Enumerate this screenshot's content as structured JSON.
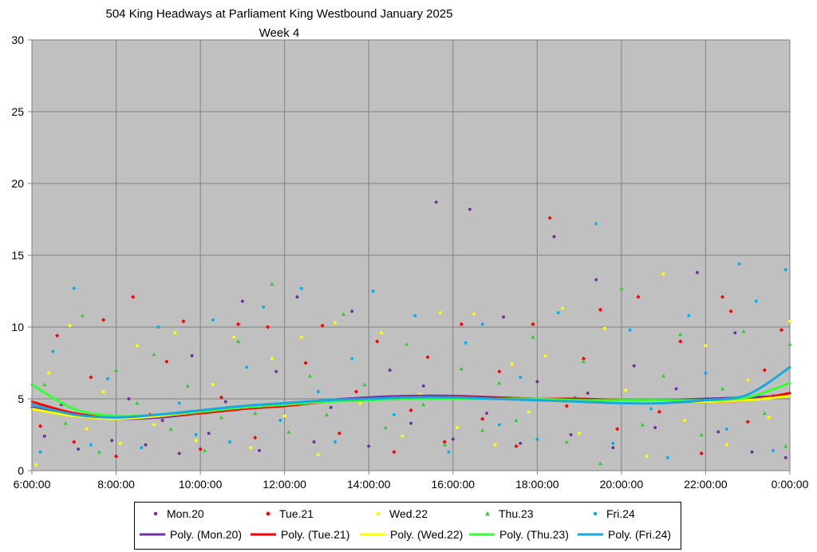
{
  "chart_data": {
    "type": "scatter",
    "title": "504 King Headways at Parliament King Westbound January 2025",
    "subtitle": "Week 4",
    "xlabel": "",
    "ylabel": "",
    "xlim": [
      "6:00:00",
      "0:00:00"
    ],
    "ylim": [
      0,
      30
    ],
    "y_ticks": [
      "0",
      "5",
      "10",
      "15",
      "20",
      "25",
      "30"
    ],
    "x_ticks": [
      "6:00:00",
      "8:00:00",
      "10:00:00",
      "12:00:00",
      "14:00:00",
      "16:00:00",
      "18:00:00",
      "20:00:00",
      "22:00:00",
      "0:00:00"
    ],
    "grid": true,
    "plot_background": "#c0c0c0",
    "legend_position": "bottom",
    "series": [
      {
        "name": "Mon.20",
        "marker": "circle",
        "color": "#7030a0",
        "points": [
          [
            6.3,
            2.4
          ],
          [
            6.7,
            4.6
          ],
          [
            7.1,
            1.5
          ],
          [
            7.5,
            3.8
          ],
          [
            7.9,
            2.1
          ],
          [
            8.3,
            5.0
          ],
          [
            8.7,
            1.8
          ],
          [
            9.1,
            3.5
          ],
          [
            9.5,
            1.2
          ],
          [
            9.8,
            8.0
          ],
          [
            10.2,
            2.6
          ],
          [
            10.6,
            4.8
          ],
          [
            11.0,
            11.8
          ],
          [
            11.4,
            1.4
          ],
          [
            11.8,
            6.9
          ],
          [
            12.3,
            12.1
          ],
          [
            12.7,
            2.0
          ],
          [
            13.1,
            4.4
          ],
          [
            13.6,
            11.1
          ],
          [
            14.0,
            1.7
          ],
          [
            14.5,
            7.0
          ],
          [
            15.0,
            3.3
          ],
          [
            15.3,
            5.9
          ],
          [
            15.6,
            18.7
          ],
          [
            16.0,
            2.2
          ],
          [
            16.4,
            18.2
          ],
          [
            16.8,
            4.0
          ],
          [
            17.2,
            10.7
          ],
          [
            17.6,
            1.9
          ],
          [
            18.0,
            6.2
          ],
          [
            18.4,
            16.3
          ],
          [
            18.8,
            2.5
          ],
          [
            19.2,
            5.4
          ],
          [
            19.4,
            13.3
          ],
          [
            19.8,
            1.6
          ],
          [
            20.3,
            7.3
          ],
          [
            20.8,
            3.0
          ],
          [
            21.3,
            5.7
          ],
          [
            21.8,
            13.8
          ],
          [
            22.3,
            2.7
          ],
          [
            22.7,
            9.6
          ],
          [
            23.1,
            1.3
          ],
          [
            23.6,
            5.2
          ],
          [
            23.9,
            0.9
          ]
        ]
      },
      {
        "name": "Tue.21",
        "marker": "diamond",
        "color": "#ff0000",
        "points": [
          [
            6.2,
            3.1
          ],
          [
            6.6,
            9.4
          ],
          [
            7.0,
            2.0
          ],
          [
            7.4,
            6.5
          ],
          [
            7.7,
            10.5
          ],
          [
            8.0,
            1.0
          ],
          [
            8.4,
            12.1
          ],
          [
            8.8,
            3.9
          ],
          [
            9.2,
            7.6
          ],
          [
            9.6,
            10.4
          ],
          [
            10.0,
            1.5
          ],
          [
            10.5,
            5.1
          ],
          [
            10.9,
            10.2
          ],
          [
            11.3,
            2.3
          ],
          [
            11.6,
            10.0
          ],
          [
            12.1,
            4.6
          ],
          [
            12.5,
            7.5
          ],
          [
            12.9,
            10.1
          ],
          [
            13.3,
            2.6
          ],
          [
            13.7,
            5.5
          ],
          [
            14.2,
            9.0
          ],
          [
            14.6,
            1.3
          ],
          [
            15.0,
            4.2
          ],
          [
            15.4,
            7.9
          ],
          [
            15.8,
            2.0
          ],
          [
            16.2,
            10.2
          ],
          [
            16.7,
            3.6
          ],
          [
            17.1,
            6.9
          ],
          [
            17.5,
            1.7
          ],
          [
            17.9,
            10.2
          ],
          [
            18.3,
            17.6
          ],
          [
            18.7,
            4.5
          ],
          [
            19.1,
            7.8
          ],
          [
            19.5,
            11.2
          ],
          [
            19.9,
            2.9
          ],
          [
            20.4,
            12.1
          ],
          [
            20.9,
            4.1
          ],
          [
            21.4,
            9.0
          ],
          [
            21.9,
            1.2
          ],
          [
            22.4,
            12.1
          ],
          [
            22.6,
            11.1
          ],
          [
            23.0,
            3.4
          ],
          [
            23.4,
            7.0
          ],
          [
            23.8,
            9.8
          ]
        ]
      },
      {
        "name": "Wed.22",
        "marker": "square",
        "color": "#ffff00",
        "points": [
          [
            6.1,
            0.4
          ],
          [
            6.4,
            6.8
          ],
          [
            6.9,
            10.1
          ],
          [
            7.3,
            2.9
          ],
          [
            7.7,
            5.5
          ],
          [
            8.1,
            1.9
          ],
          [
            8.5,
            8.7
          ],
          [
            8.9,
            3.2
          ],
          [
            9.4,
            9.6
          ],
          [
            9.9,
            2.1
          ],
          [
            10.3,
            6.0
          ],
          [
            10.8,
            9.3
          ],
          [
            11.2,
            1.6
          ],
          [
            11.7,
            7.8
          ],
          [
            12.0,
            3.8
          ],
          [
            12.4,
            9.3
          ],
          [
            12.8,
            1.1
          ],
          [
            13.2,
            10.3
          ],
          [
            13.8,
            4.7
          ],
          [
            14.3,
            9.6
          ],
          [
            14.8,
            2.4
          ],
          [
            15.2,
            5.3
          ],
          [
            15.7,
            11.0
          ],
          [
            16.1,
            3.0
          ],
          [
            16.5,
            10.9
          ],
          [
            17.0,
            1.8
          ],
          [
            17.4,
            7.4
          ],
          [
            17.8,
            4.1
          ],
          [
            18.2,
            8.0
          ],
          [
            18.6,
            11.3
          ],
          [
            19.0,
            2.6
          ],
          [
            19.6,
            9.9
          ],
          [
            20.1,
            5.6
          ],
          [
            20.6,
            1.0
          ],
          [
            21.0,
            13.7
          ],
          [
            21.5,
            3.5
          ],
          [
            22.0,
            8.7
          ],
          [
            22.5,
            1.8
          ],
          [
            23.0,
            6.3
          ],
          [
            23.5,
            3.7
          ],
          [
            24.0,
            10.4
          ]
        ]
      },
      {
        "name": "Thu.23",
        "marker": "triangle",
        "color": "#33cc33",
        "points": [
          [
            6.3,
            6.0
          ],
          [
            6.8,
            3.3
          ],
          [
            7.2,
            10.8
          ],
          [
            7.6,
            1.3
          ],
          [
            8.0,
            7.0
          ],
          [
            8.5,
            4.7
          ],
          [
            8.9,
            8.1
          ],
          [
            9.3,
            2.9
          ],
          [
            9.7,
            5.9
          ],
          [
            10.1,
            1.4
          ],
          [
            10.5,
            3.7
          ],
          [
            10.9,
            9.0
          ],
          [
            11.3,
            4.0
          ],
          [
            11.7,
            13.0
          ],
          [
            12.1,
            2.7
          ],
          [
            12.6,
            6.6
          ],
          [
            13.0,
            3.9
          ],
          [
            13.4,
            10.9
          ],
          [
            13.9,
            6.0
          ],
          [
            14.4,
            3.0
          ],
          [
            14.9,
            8.8
          ],
          [
            15.3,
            4.6
          ],
          [
            15.8,
            1.8
          ],
          [
            16.2,
            7.1
          ],
          [
            16.7,
            2.8
          ],
          [
            17.1,
            6.1
          ],
          [
            17.5,
            3.5
          ],
          [
            17.9,
            9.3
          ],
          [
            18.3,
            4.9
          ],
          [
            18.7,
            2.0
          ],
          [
            19.1,
            7.6
          ],
          [
            19.5,
            0.5
          ],
          [
            20.0,
            12.7
          ],
          [
            20.5,
            3.2
          ],
          [
            21.0,
            6.6
          ],
          [
            21.4,
            9.5
          ],
          [
            21.9,
            2.5
          ],
          [
            22.4,
            5.7
          ],
          [
            22.9,
            9.7
          ],
          [
            23.4,
            4.0
          ],
          [
            23.9,
            1.7
          ],
          [
            24.0,
            8.8
          ]
        ]
      },
      {
        "name": "Fri.24",
        "marker": "circle",
        "color": "#00b0f0",
        "points": [
          [
            6.2,
            1.3
          ],
          [
            6.5,
            8.3
          ],
          [
            7.0,
            12.7
          ],
          [
            7.4,
            1.8
          ],
          [
            7.8,
            6.4
          ],
          [
            8.2,
            3.6
          ],
          [
            8.6,
            1.6
          ],
          [
            9.0,
            10.0
          ],
          [
            9.5,
            4.7
          ],
          [
            9.9,
            2.5
          ],
          [
            10.3,
            10.5
          ],
          [
            10.7,
            2.0
          ],
          [
            11.1,
            7.2
          ],
          [
            11.5,
            11.4
          ],
          [
            11.9,
            3.5
          ],
          [
            12.4,
            12.7
          ],
          [
            12.8,
            5.5
          ],
          [
            13.2,
            2.0
          ],
          [
            13.6,
            7.8
          ],
          [
            14.1,
            12.5
          ],
          [
            14.6,
            3.9
          ],
          [
            15.1,
            10.8
          ],
          [
            15.5,
            5.0
          ],
          [
            15.9,
            1.3
          ],
          [
            16.3,
            8.9
          ],
          [
            16.7,
            10.2
          ],
          [
            17.1,
            3.2
          ],
          [
            17.6,
            6.5
          ],
          [
            18.0,
            2.2
          ],
          [
            18.5,
            11.0
          ],
          [
            18.9,
            5.1
          ],
          [
            19.4,
            17.2
          ],
          [
            19.8,
            1.9
          ],
          [
            20.2,
            9.8
          ],
          [
            20.7,
            4.3
          ],
          [
            21.1,
            0.9
          ],
          [
            21.6,
            10.8
          ],
          [
            22.0,
            6.8
          ],
          [
            22.5,
            2.9
          ],
          [
            22.8,
            14.4
          ],
          [
            23.2,
            11.8
          ],
          [
            23.6,
            1.4
          ],
          [
            23.9,
            14.0
          ]
        ]
      }
    ],
    "trendlines": [
      {
        "name": "Poly. (Mon.20)",
        "color": "#7030a0",
        "x": [
          6,
          7,
          8,
          9,
          10,
          11,
          12,
          13,
          14,
          15,
          16,
          17,
          18,
          19,
          20,
          21,
          22,
          23,
          24
        ],
        "y": [
          4.4,
          3.8,
          3.6,
          3.7,
          4.0,
          4.3,
          4.6,
          4.9,
          5.1,
          5.2,
          5.2,
          5.1,
          5.0,
          4.9,
          4.9,
          4.9,
          5.0,
          5.1,
          5.2
        ]
      },
      {
        "name": "Poly. (Tue.21)",
        "color": "#ff0000",
        "x": [
          6,
          7,
          8,
          9,
          10,
          11,
          12,
          13,
          14,
          15,
          16,
          17,
          18,
          19,
          20,
          21,
          22,
          23,
          24
        ],
        "y": [
          4.8,
          4.0,
          3.7,
          3.8,
          4.0,
          4.3,
          4.5,
          4.8,
          5.0,
          5.1,
          5.1,
          5.1,
          5.0,
          5.0,
          4.9,
          4.8,
          4.8,
          4.9,
          5.4
        ]
      },
      {
        "name": "Poly. (Wed.22)",
        "color": "#ffff00",
        "x": [
          6,
          7,
          8,
          9,
          10,
          11,
          12,
          13,
          14,
          15,
          16,
          17,
          18,
          19,
          20,
          21,
          22,
          23,
          24
        ],
        "y": [
          4.3,
          3.8,
          3.6,
          3.8,
          4.1,
          4.4,
          4.6,
          4.8,
          4.9,
          5.0,
          5.0,
          5.0,
          4.9,
          4.8,
          4.8,
          4.8,
          4.8,
          4.9,
          5.2
        ]
      },
      {
        "name": "Poly. (Thu.23)",
        "color": "#33ff33",
        "x": [
          6,
          7,
          8,
          9,
          10,
          11,
          12,
          13,
          14,
          15,
          16,
          17,
          18,
          19,
          20,
          21,
          22,
          23,
          24
        ],
        "y": [
          6.0,
          4.3,
          3.8,
          3.9,
          4.1,
          4.4,
          4.6,
          4.8,
          4.9,
          5.0,
          5.0,
          5.0,
          5.0,
          4.9,
          4.9,
          4.9,
          4.9,
          5.1,
          6.1
        ]
      },
      {
        "name": "Poly. (Fri.24)",
        "color": "#1aa7e0",
        "x": [
          6,
          7,
          8,
          9,
          10,
          11,
          12,
          13,
          14,
          15,
          16,
          17,
          18,
          19,
          20,
          21,
          22,
          23,
          24
        ],
        "y": [
          4.6,
          3.9,
          3.7,
          3.9,
          4.2,
          4.5,
          4.7,
          4.9,
          5.0,
          5.1,
          5.1,
          5.0,
          4.9,
          4.8,
          4.7,
          4.7,
          4.9,
          5.3,
          7.2
        ]
      }
    ]
  }
}
